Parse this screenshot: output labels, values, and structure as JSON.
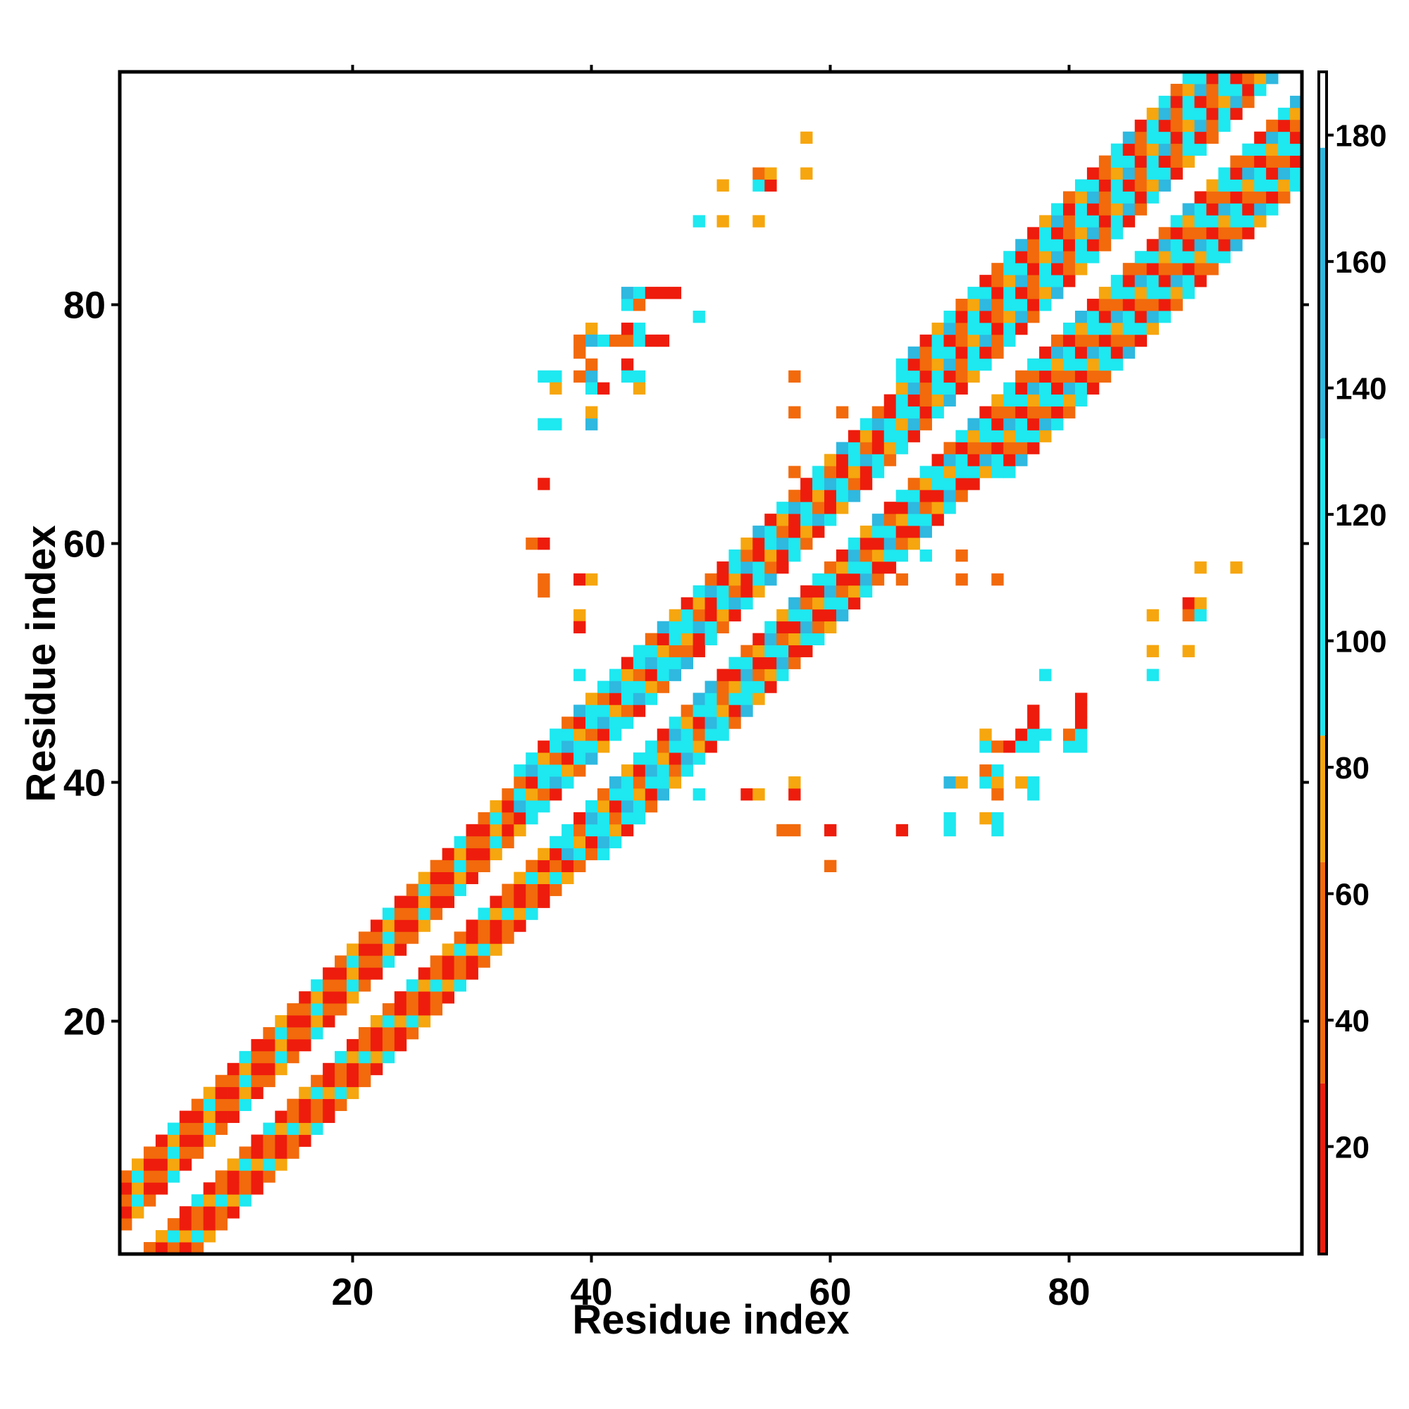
{
  "chart_data": {
    "type": "heatmap",
    "title": "",
    "xlabel": "Residue index",
    "ylabel": "Residue index",
    "xlim": [
      0.5,
      99.5
    ],
    "ylim": [
      0.5,
      99.5
    ],
    "xticks": [
      20,
      40,
      60,
      80
    ],
    "yticks": [
      20,
      40,
      60,
      80
    ],
    "xtick_labels": [
      "20",
      "40",
      "60",
      "80"
    ],
    "ytick_labels": [
      "20",
      "40",
      "60",
      "80"
    ],
    "grid": false,
    "colorbar": {
      "range": [
        3,
        190
      ],
      "ticks": [
        20,
        40,
        60,
        80,
        100,
        120,
        140,
        160,
        180
      ],
      "tick_labels": [
        "20",
        "40",
        "60",
        "80",
        "100",
        "120",
        "140",
        "160",
        "180"
      ],
      "segments": [
        {
          "from": 3,
          "to": 30,
          "color": "#ee1c0c"
        },
        {
          "from": 30,
          "to": 65,
          "color": "#f26a0c"
        },
        {
          "from": 65,
          "to": 85,
          "color": "#f6a60e"
        },
        {
          "from": 85,
          "to": 132,
          "color": "#1ee8f0"
        },
        {
          "from": 132,
          "to": 178,
          "color": "#2fb8e0"
        },
        {
          "from": 178,
          "to": 190,
          "color": "#ffffff"
        }
      ]
    },
    "band": {
      "segments": [
        {
          "start": 1,
          "end": 34,
          "width": 6,
          "pattern": [
            "#ee1c0c",
            "#f26a0c",
            "#f6a60e",
            "#f26a0c",
            "#ee1c0c",
            "#1ee8f0"
          ]
        },
        {
          "start": 34,
          "end": 48,
          "width": 7,
          "pattern": [
            "#1ee8f0",
            "#ee1c0c",
            "#1ee8f0",
            "#f26a0c",
            "#2fb8e0",
            "#f6a60e",
            "#1ee8f0"
          ]
        },
        {
          "start": 48,
          "end": 66,
          "width": 7,
          "pattern": [
            "#1ee8f0",
            "#f26a0c",
            "#ee1c0c",
            "#1ee8f0",
            "#f6a60e",
            "#2fb8e0",
            "#ee1c0c"
          ]
        },
        {
          "start": 66,
          "end": 100,
          "width": 9,
          "pattern": [
            "#1ee8f0",
            "#ee1c0c",
            "#f26a0c",
            "#1ee8f0",
            "#2fb8e0",
            "#ee1c0c",
            "#f6a60e",
            "#1ee8f0",
            "#f26a0c"
          ]
        }
      ]
    },
    "contacts": [
      [
        35,
        60,
        "#f26a0c"
      ],
      [
        36,
        60,
        "#ee1c0c"
      ],
      [
        36,
        65,
        "#ee1c0c"
      ],
      [
        36,
        57,
        "#f26a0c"
      ],
      [
        36,
        56,
        "#f26a0c"
      ],
      [
        39,
        57,
        "#ee1c0c"
      ],
      [
        40,
        57,
        "#f6a60e"
      ],
      [
        39,
        54,
        "#f6a60e"
      ],
      [
        39,
        53,
        "#ee1c0c"
      ],
      [
        39,
        49,
        "#1ee8f0"
      ],
      [
        36,
        70,
        "#1ee8f0"
      ],
      [
        37,
        70,
        "#1ee8f0"
      ],
      [
        40,
        70,
        "#2fb8e0"
      ],
      [
        40,
        71,
        "#f6a60e"
      ],
      [
        36,
        74,
        "#1ee8f0"
      ],
      [
        37,
        74,
        "#1ee8f0"
      ],
      [
        37,
        73,
        "#f6a60e"
      ],
      [
        40,
        74,
        "#2fb8e0"
      ],
      [
        40,
        73,
        "#1ee8f0"
      ],
      [
        41,
        73,
        "#ee1c0c"
      ],
      [
        39,
        74,
        "#f26a0c"
      ],
      [
        40,
        75,
        "#f26a0c"
      ],
      [
        39,
        76,
        "#f26a0c"
      ],
      [
        39,
        77,
        "#f26a0c"
      ],
      [
        40,
        78,
        "#f6a60e"
      ],
      [
        40,
        77,
        "#2fb8e0"
      ],
      [
        41,
        77,
        "#1ee8f0"
      ],
      [
        42,
        77,
        "#f26a0c"
      ],
      [
        43,
        77,
        "#f26a0c"
      ],
      [
        43,
        78,
        "#ee1c0c"
      ],
      [
        44,
        78,
        "#1ee8f0"
      ],
      [
        44,
        77,
        "#1ee8f0"
      ],
      [
        45,
        77,
        "#ee1c0c"
      ],
      [
        46,
        77,
        "#ee1c0c"
      ],
      [
        43,
        75,
        "#ee1c0c"
      ],
      [
        43,
        74,
        "#1ee8f0"
      ],
      [
        44,
        74,
        "#1ee8f0"
      ],
      [
        44,
        73,
        "#f6a60e"
      ],
      [
        43,
        80,
        "#1ee8f0"
      ],
      [
        43,
        81,
        "#2fb8e0"
      ],
      [
        44,
        81,
        "#1ee8f0"
      ],
      [
        45,
        81,
        "#ee1c0c"
      ],
      [
        46,
        81,
        "#ee1c0c"
      ],
      [
        47,
        81,
        "#ee1c0c"
      ],
      [
        44,
        80,
        "#f26a0c"
      ],
      [
        49,
        79,
        "#1ee8f0"
      ],
      [
        49,
        87,
        "#1ee8f0"
      ],
      [
        51,
        87,
        "#f6a60e"
      ],
      [
        54,
        87,
        "#f6a60e"
      ],
      [
        51,
        90,
        "#f6a60e"
      ],
      [
        54,
        90,
        "#1ee8f0"
      ],
      [
        55,
        90,
        "#ee1c0c"
      ],
      [
        54,
        91,
        "#f26a0c"
      ],
      [
        55,
        91,
        "#f6a60e"
      ],
      [
        58,
        91,
        "#f6a60e"
      ],
      [
        58,
        94,
        "#f6a60e"
      ],
      [
        57,
        74,
        "#f26a0c"
      ],
      [
        57,
        71,
        "#f26a0c"
      ],
      [
        61,
        71,
        "#f26a0c"
      ],
      [
        57,
        66,
        "#f26a0c"
      ],
      [
        59,
        66,
        "#1ee8f0"
      ],
      [
        61,
        68,
        "#1ee8f0"
      ],
      [
        66,
        57,
        "#f26a0c"
      ],
      [
        68,
        59,
        "#1ee8f0"
      ],
      [
        71,
        59,
        "#f26a0c"
      ],
      [
        71,
        57,
        "#f26a0c"
      ],
      [
        74,
        57,
        "#f26a0c"
      ],
      [
        91,
        58,
        "#f6a60e"
      ],
      [
        94,
        58,
        "#f6a60e"
      ],
      [
        87,
        54,
        "#f6a60e"
      ],
      [
        90,
        55,
        "#ee1c0c"
      ],
      [
        91,
        55,
        "#f6a60e"
      ],
      [
        90,
        54,
        "#f26a0c"
      ],
      [
        91,
        54,
        "#1ee8f0"
      ],
      [
        87,
        51,
        "#f6a60e"
      ],
      [
        90,
        51,
        "#f6a60e"
      ],
      [
        87,
        49,
        "#1ee8f0"
      ],
      [
        78,
        49,
        "#1ee8f0"
      ],
      [
        49,
        39,
        "#1ee8f0"
      ],
      [
        53,
        39,
        "#ee1c0c"
      ],
      [
        54,
        39,
        "#f6a60e"
      ],
      [
        57,
        39,
        "#ee1c0c"
      ],
      [
        57,
        40,
        "#f6a60e"
      ],
      [
        56,
        36,
        "#f26a0c"
      ],
      [
        57,
        36,
        "#f26a0c"
      ],
      [
        60,
        36,
        "#ee1c0c"
      ],
      [
        66,
        36,
        "#ee1c0c"
      ],
      [
        60,
        33,
        "#f26a0c"
      ],
      [
        70,
        36,
        "#1ee8f0"
      ],
      [
        70,
        37,
        "#1ee8f0"
      ],
      [
        73,
        37,
        "#f6a60e"
      ],
      [
        74,
        37,
        "#1ee8f0"
      ],
      [
        74,
        36,
        "#1ee8f0"
      ],
      [
        70,
        40,
        "#2fb8e0"
      ],
      [
        71,
        40,
        "#f6a60e"
      ],
      [
        73,
        40,
        "#1ee8f0"
      ],
      [
        74,
        40,
        "#f6a60e"
      ],
      [
        74,
        39,
        "#f26a0c"
      ],
      [
        73,
        41,
        "#f26a0c"
      ],
      [
        74,
        41,
        "#1ee8f0"
      ],
      [
        76,
        40,
        "#f6a60e"
      ],
      [
        77,
        40,
        "#1ee8f0"
      ],
      [
        77,
        39,
        "#1ee8f0"
      ],
      [
        73,
        43,
        "#1ee8f0"
      ],
      [
        73,
        44,
        "#f6a60e"
      ],
      [
        74,
        43,
        "#f26a0c"
      ],
      [
        75,
        43,
        "#ee1c0c"
      ],
      [
        76,
        43,
        "#1ee8f0"
      ],
      [
        76,
        44,
        "#ee1c0c"
      ],
      [
        77,
        44,
        "#1ee8f0"
      ],
      [
        77,
        45,
        "#ee1c0c"
      ],
      [
        77,
        46,
        "#ee1c0c"
      ],
      [
        78,
        44,
        "#1ee8f0"
      ],
      [
        77,
        43,
        "#1ee8f0"
      ],
      [
        80,
        43,
        "#1ee8f0"
      ],
      [
        80,
        44,
        "#f26a0c"
      ],
      [
        81,
        44,
        "#1ee8f0"
      ],
      [
        81,
        43,
        "#1ee8f0"
      ],
      [
        81,
        45,
        "#ee1c0c"
      ],
      [
        81,
        46,
        "#ee1c0c"
      ],
      [
        81,
        47,
        "#ee1c0c"
      ]
    ]
  }
}
